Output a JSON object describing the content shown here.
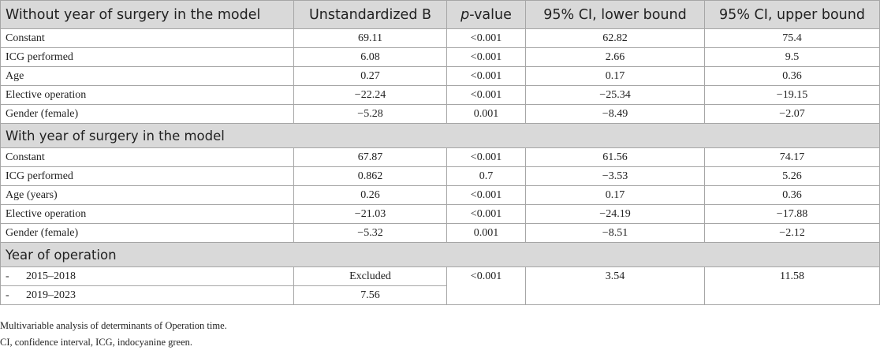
{
  "table": {
    "header": {
      "label": "Without year of surgery in the model",
      "b": "Unstandardized B",
      "p_italic": "p",
      "p_rest": "-value",
      "lower": "95% CI, lower bound",
      "upper": "95% CI, upper bound"
    },
    "sections": [
      {
        "rows": [
          [
            "Constant",
            "69.11",
            "<0.001",
            "62.82",
            "75.4"
          ],
          [
            "ICG performed",
            "6.08",
            "<0.001",
            "2.66",
            "9.5"
          ],
          [
            "Age",
            "0.27",
            "<0.001",
            "0.17",
            "0.36"
          ],
          [
            "Elective operation",
            "−22.24",
            "<0.001",
            "−25.34",
            "−19.15"
          ],
          [
            "Gender (female)",
            "−5.28",
            "0.001",
            "−8.49",
            "−2.07"
          ]
        ]
      },
      {
        "title": "With year of surgery in the model",
        "rows": [
          [
            "Constant",
            "67.87",
            "<0.001",
            "61.56",
            "74.17"
          ],
          [
            "ICG performed",
            "0.862",
            "0.7",
            "−3.53",
            "5.26"
          ],
          [
            "Age (years)",
            "0.26",
            "<0.001",
            "0.17",
            "0.36"
          ],
          [
            "Elective operation",
            "−21.03",
            "<0.001",
            "−24.19",
            "−17.88"
          ],
          [
            "Gender (female)",
            "−5.32",
            "0.001",
            "−8.51",
            "−2.12"
          ]
        ]
      }
    ],
    "year_section": {
      "title": "Year of operation",
      "rows": [
        {
          "bullet": "-",
          "label": "2015–2018",
          "b": "Excluded"
        },
        {
          "bullet": "-",
          "label": "2019–2023",
          "b": "7.56"
        }
      ],
      "merged": {
        "p": "<0.001",
        "lower": "3.54",
        "upper": "11.58"
      }
    }
  },
  "footnotes": [
    "Multivariable analysis of determinants of Operation time.",
    "CI, confidence interval, ICG, indocyanine green."
  ]
}
